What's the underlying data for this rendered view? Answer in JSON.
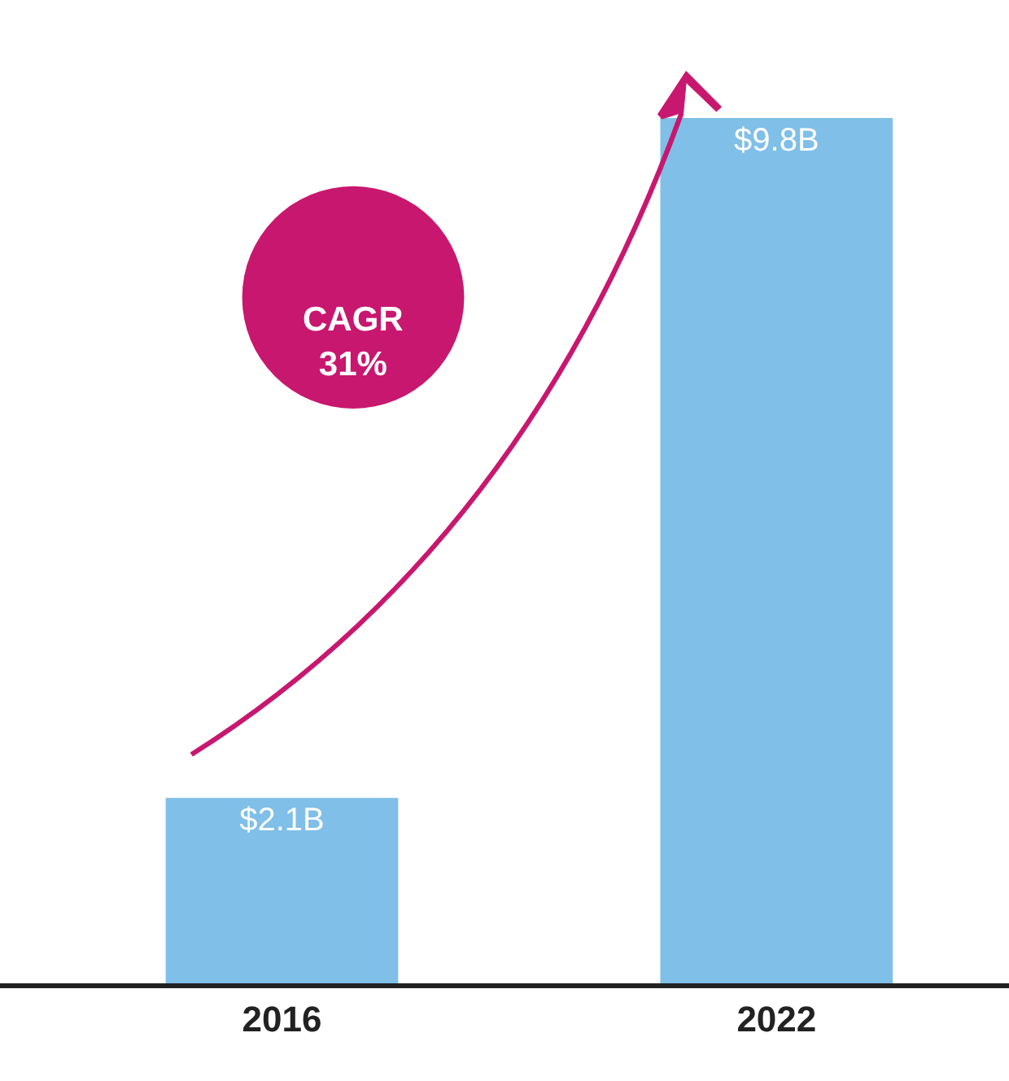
{
  "chart_data": {
    "type": "bar",
    "categories": [
      "2016",
      "2022"
    ],
    "values": [
      2.1,
      9.8
    ],
    "value_labels": [
      "$2.1B",
      "$9.8B"
    ],
    "color": "#7fbfe8",
    "annotations": [
      "CAGR\n31%"
    ]
  }
}
